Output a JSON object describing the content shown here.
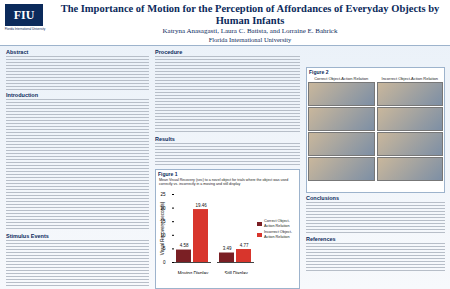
{
  "header": {
    "logo": "FIU",
    "logo_subtitle": "Florida International University",
    "title": "The Importance of Motion for the Perception of Affordances of Everyday Objects by Human Infants",
    "authors": "Katryna Anasagasti, Laura C. Batista, and Lorraine E. Bahrick",
    "affiliation": "Florida International University"
  },
  "left_sections": [
    "Abstract",
    "Introduction",
    "Stimulus Events"
  ],
  "middle_sections": [
    "Procedure",
    "Results"
  ],
  "figure2": {
    "label": "Figure 2",
    "panels": [
      "Correct Object-Action Relation",
      "Incorrect Object-Action Relation"
    ]
  },
  "right_sections": [
    "Conclusions",
    "References"
  ],
  "chart_data": {
    "type": "bar",
    "title": "Figure 1",
    "subtitle": "Mean Visual Recovery (sec) to a novel object for trials where the object was used correctly vs. incorrectly in a moving and still display",
    "categories": [
      "Moving Display",
      "Still Display"
    ],
    "series": [
      {
        "name": "Correct Object-Action Relation",
        "color": "#7a1f24",
        "values": [
          4.58,
          3.49
        ]
      },
      {
        "name": "Incorrect Object-Action Relation",
        "color": "#d8352c",
        "values": [
          19.46,
          4.77
        ]
      }
    ],
    "ylabel": "Visual Recovery (seconds)",
    "ylim": [
      0,
      25
    ],
    "yticks": [
      0,
      5,
      10,
      15,
      20,
      25
    ],
    "data_labels": true,
    "legend": "right"
  }
}
